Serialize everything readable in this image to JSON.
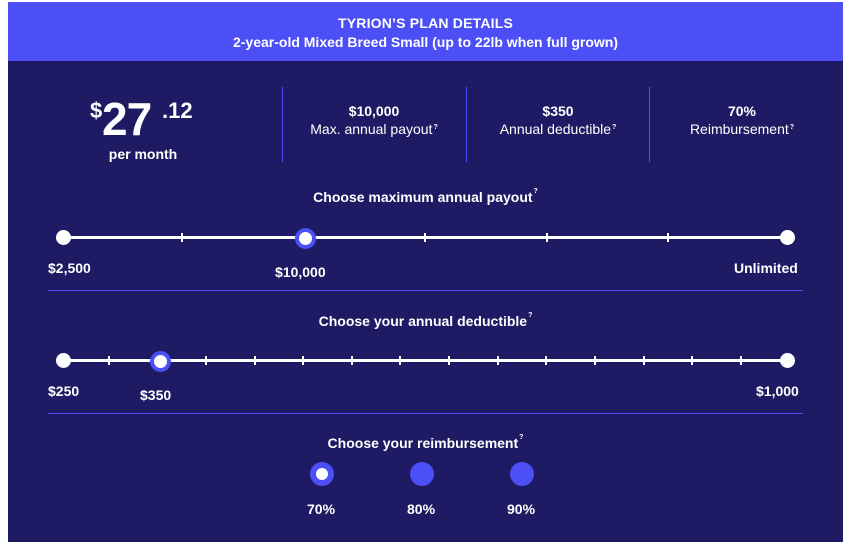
{
  "header": {
    "title": "TYRION’S PLAN DETAILS",
    "subtitle": "2-year-old Mixed Breed Small (up to 22lb when full grown)"
  },
  "price": {
    "currency": "$",
    "amount": "27",
    "cents": ".12",
    "period": "per month"
  },
  "stats": [
    {
      "value": "$10,000",
      "label": "Max. annual payout"
    },
    {
      "value": "$350",
      "label": "Annual deductible"
    },
    {
      "value": "70%",
      "label": "Reimbursement"
    }
  ],
  "help_mark": "?",
  "payout": {
    "title": "Choose maximum annual payout",
    "min_label": "$2,500",
    "selected_label": "$10,000",
    "max_label": "Unlimited",
    "selected_fraction": 0.333
  },
  "deductible": {
    "title": "Choose your annual deductible",
    "min_label": "$250",
    "selected_label": "$350",
    "max_label": "$1,000",
    "selected_fraction": 0.133
  },
  "reimbursement": {
    "title": "Choose your reimbursement",
    "options": [
      "70%",
      "80%",
      "90%"
    ],
    "selected": "70%"
  },
  "colors": {
    "navy": "#1e1a64",
    "accent": "#4b4ff5",
    "white": "#ffffff"
  }
}
